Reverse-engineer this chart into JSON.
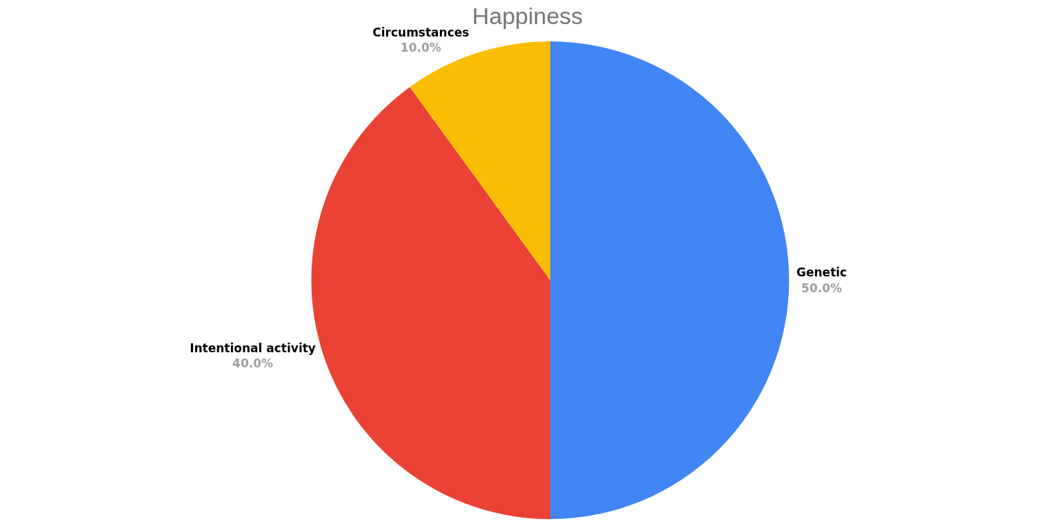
{
  "chart_data": {
    "type": "pie",
    "title": "Happiness",
    "categories": [
      "Genetic",
      "Intentional activity",
      "Circumstances"
    ],
    "values": [
      50,
      40,
      10
    ],
    "value_labels": [
      "50.0%",
      "40.0%",
      "10.0%"
    ],
    "colors": [
      "#4285f4",
      "#ea4335",
      "#fbbc04"
    ],
    "legend": false
  }
}
